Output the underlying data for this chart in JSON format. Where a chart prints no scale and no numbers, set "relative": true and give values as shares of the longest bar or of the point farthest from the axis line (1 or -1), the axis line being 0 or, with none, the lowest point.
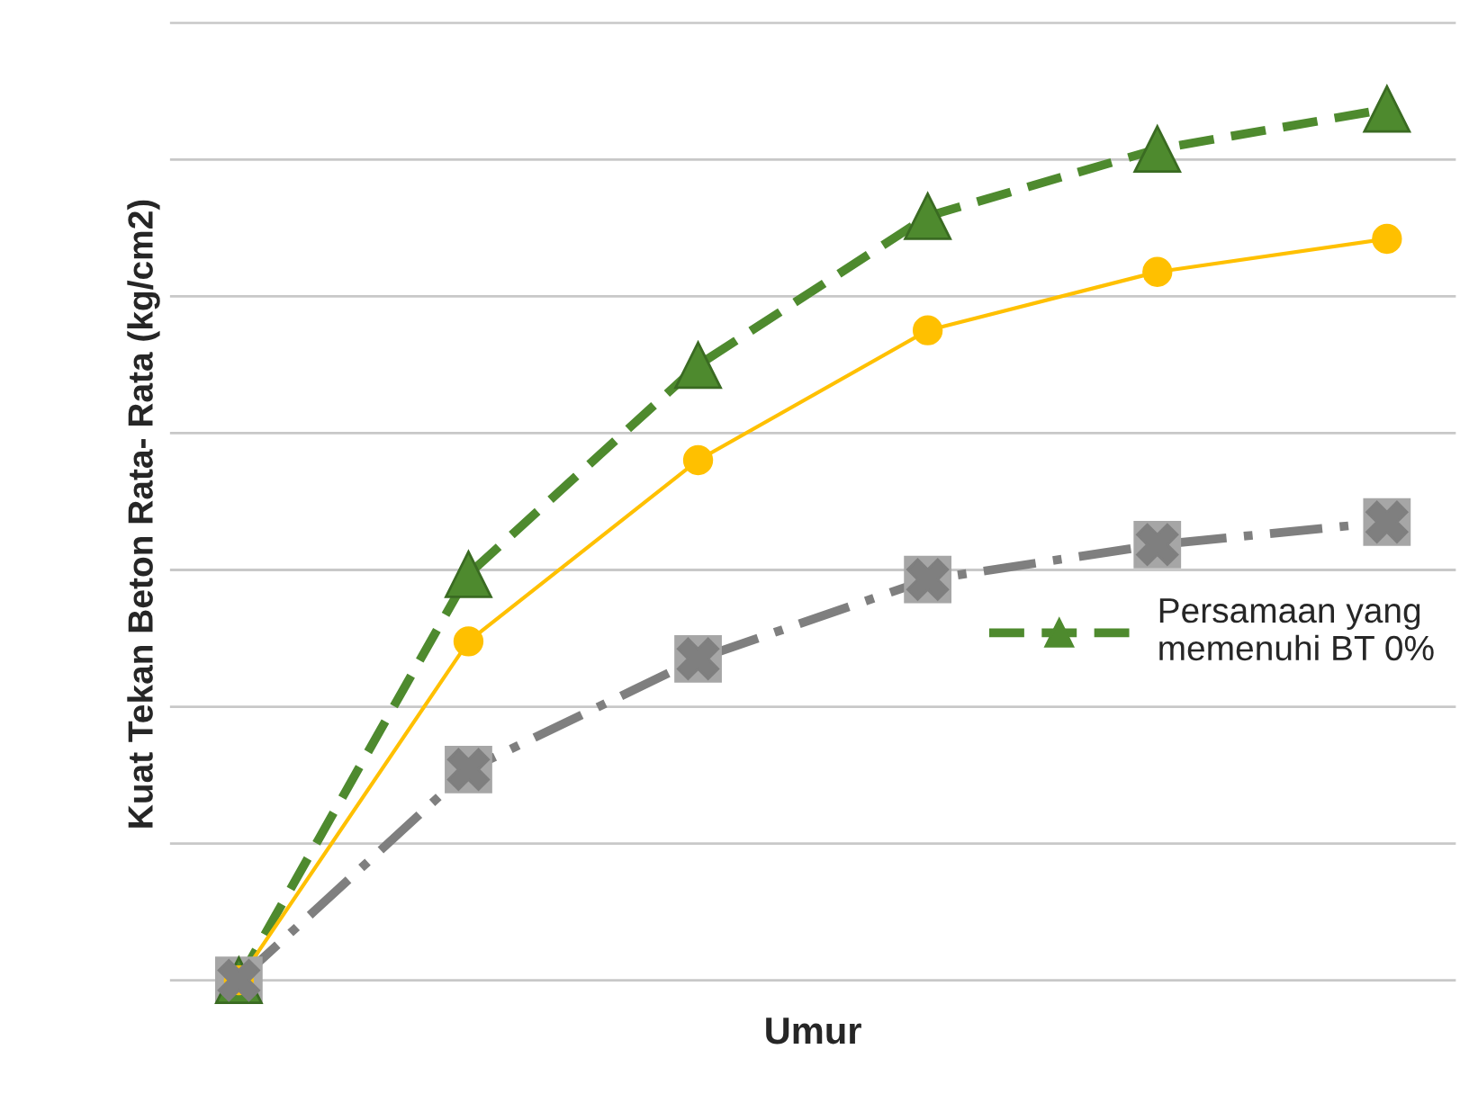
{
  "chart_data": {
    "type": "line",
    "xlabel": "Umur",
    "ylabel": "Kuat Tekan Beton Rata- Rata (kg/cm2)",
    "relative": true,
    "categories": [
      null,
      null,
      null,
      null,
      null,
      null
    ],
    "tick_labels": false,
    "grid": "y",
    "legend": "right",
    "series": [
      {
        "name": "Persamaan yang\nmemenuhi BT 0%",
        "color": "#4e8a2e",
        "values": [
          0,
          0.466,
          0.706,
          0.877,
          0.954,
          1
        ],
        "marker": "triangle",
        "line_style": "dashed"
      },
      {
        "color": "#ffc000",
        "values": [
          0,
          0.389,
          0.597,
          0.746,
          0.813,
          0.851
        ],
        "marker": "circle",
        "line_style": "solid"
      },
      {
        "color": "#7f7f7f",
        "values": [
          0,
          0.242,
          0.369,
          0.46,
          0.5,
          0.526
        ],
        "marker": "cross",
        "line_style": "dashdot"
      }
    ]
  }
}
